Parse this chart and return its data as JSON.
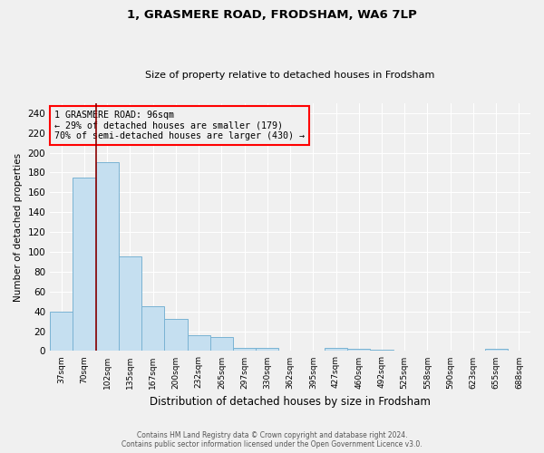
{
  "title1": "1, GRASMERE ROAD, FRODSHAM, WA6 7LP",
  "title2": "Size of property relative to detached houses in Frodsham",
  "xlabel": "Distribution of detached houses by size in Frodsham",
  "ylabel": "Number of detached properties",
  "categories": [
    "37sqm",
    "70sqm",
    "102sqm",
    "135sqm",
    "167sqm",
    "200sqm",
    "232sqm",
    "265sqm",
    "297sqm",
    "330sqm",
    "362sqm",
    "395sqm",
    "427sqm",
    "460sqm",
    "492sqm",
    "525sqm",
    "558sqm",
    "590sqm",
    "623sqm",
    "655sqm",
    "688sqm"
  ],
  "values": [
    40,
    175,
    190,
    95,
    45,
    32,
    16,
    14,
    3,
    3,
    0,
    0,
    3,
    2,
    1,
    0,
    0,
    0,
    0,
    2,
    0
  ],
  "bar_color": "#c5dff0",
  "bar_edge_color": "#7ab3d3",
  "vline_x": 1.5,
  "vline_color": "#8b0000",
  "annotation_lines": [
    "1 GRASMERE ROAD: 96sqm",
    "← 29% of detached houses are smaller (179)",
    "70% of semi-detached houses are larger (430) →"
  ],
  "ylim": [
    0,
    250
  ],
  "yticks": [
    0,
    20,
    40,
    60,
    80,
    100,
    120,
    140,
    160,
    180,
    200,
    220,
    240
  ],
  "footer_line1": "Contains HM Land Registry data © Crown copyright and database right 2024.",
  "footer_line2": "Contains public sector information licensed under the Open Government Licence v3.0.",
  "bg_color": "#f0f0f0"
}
